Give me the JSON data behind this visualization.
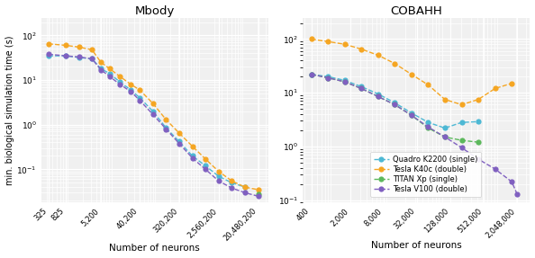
{
  "mbody_xticks": [
    325,
    825,
    5200,
    40200,
    320200,
    2560200,
    20480200
  ],
  "mbody_xtick_labels": [
    "325",
    "825",
    "5,200",
    "40,200",
    "320,200",
    "2,560,200",
    "20,480,200"
  ],
  "cobahh_xticks": [
    400,
    2000,
    8000,
    32000,
    128000,
    512000,
    2048000
  ],
  "cobahh_xtick_labels": [
    "400",
    "2,000",
    "8,000",
    "32,000",
    "128,000",
    "512,000",
    "2,048,000"
  ],
  "mbody_quadro_x": [
    325,
    825,
    1625,
    3225,
    5200,
    8200,
    14200,
    25200,
    40200,
    80200,
    160200,
    320200,
    640200,
    1280200,
    2560200,
    5120200,
    10240200
  ],
  "mbody_quadro_y": [
    35,
    35,
    32,
    30,
    18,
    14,
    9,
    6,
    4.0,
    2.0,
    0.85,
    0.42,
    0.2,
    0.12,
    0.07,
    0.05,
    0.04
  ],
  "mbody_tesla_k40_x": [
    325,
    825,
    1625,
    3225,
    5200,
    8200,
    14200,
    25200,
    40200,
    80200,
    160200,
    320200,
    640200,
    1280200,
    2560200,
    5120200,
    10240200,
    20480200
  ],
  "mbody_tesla_k40_y": [
    65,
    60,
    55,
    48,
    25,
    18,
    12,
    8,
    6.0,
    3.0,
    1.3,
    0.65,
    0.33,
    0.17,
    0.09,
    0.055,
    0.04,
    0.035
  ],
  "mbody_titan_x": [
    20480200
  ],
  "mbody_titan_y": [
    0.028
  ],
  "mbody_v100_x": [
    325,
    825,
    1625,
    3225,
    5200,
    8200,
    14200,
    25200,
    40200,
    80200,
    160200,
    320200,
    640200,
    1280200,
    2560200,
    5120200,
    10240200,
    20480200
  ],
  "mbody_v100_y": [
    38,
    35,
    33,
    30,
    17,
    12,
    8,
    5.5,
    3.5,
    1.7,
    0.8,
    0.38,
    0.18,
    0.1,
    0.055,
    0.038,
    0.03,
    0.025
  ],
  "cobahh_quadro_x": [
    400,
    800,
    1600,
    3200,
    6400,
    12800,
    25600,
    51200,
    102400,
    204800,
    409600
  ],
  "cobahh_quadro_y": [
    22,
    20,
    17,
    13,
    9.5,
    6.5,
    4.2,
    2.8,
    2.2,
    2.8,
    2.9
  ],
  "cobahh_tesla_k40_x": [
    400,
    800,
    1600,
    3200,
    6400,
    12800,
    25600,
    51200,
    102400,
    204800,
    409600,
    819200,
    1638400
  ],
  "cobahh_tesla_k40_y": [
    100,
    90,
    80,
    65,
    50,
    35,
    22,
    14,
    7.5,
    6.0,
    7.5,
    12.0,
    15.0
  ],
  "cobahh_titan_x": [
    400,
    800,
    1600,
    3200,
    6400,
    12800,
    25600,
    51200,
    102400,
    204800,
    409600
  ],
  "cobahh_titan_y": [
    22,
    19,
    16,
    12,
    8.5,
    6.0,
    3.8,
    2.2,
    1.5,
    1.3,
    1.2
  ],
  "cobahh_v100_x": [
    400,
    800,
    1600,
    3200,
    6400,
    12800,
    25600,
    51200,
    102400,
    204800,
    409600,
    819200,
    1638400,
    2048000
  ],
  "cobahh_v100_y": [
    22,
    19,
    16,
    12,
    8.5,
    6.0,
    3.8,
    2.3,
    1.5,
    0.95,
    0.58,
    0.38,
    0.22,
    0.13
  ],
  "color_quadro": "#4db8d4",
  "color_k40": "#f5a623",
  "color_titan": "#5cb85c",
  "color_v100": "#8060c0",
  "bg_color": [
    0.94,
    0.94,
    0.94
  ],
  "title_mbody": "Mbody",
  "title_cobahh": "COBAHH",
  "ylabel": "min. biological simulation time (s)",
  "xlabel": "Number of neurons",
  "legend_labels": [
    "Quadro K2200 (single)",
    "Tesla K40c (double)",
    "TITAN Xp (single)",
    "Tesla V100 (double)"
  ]
}
